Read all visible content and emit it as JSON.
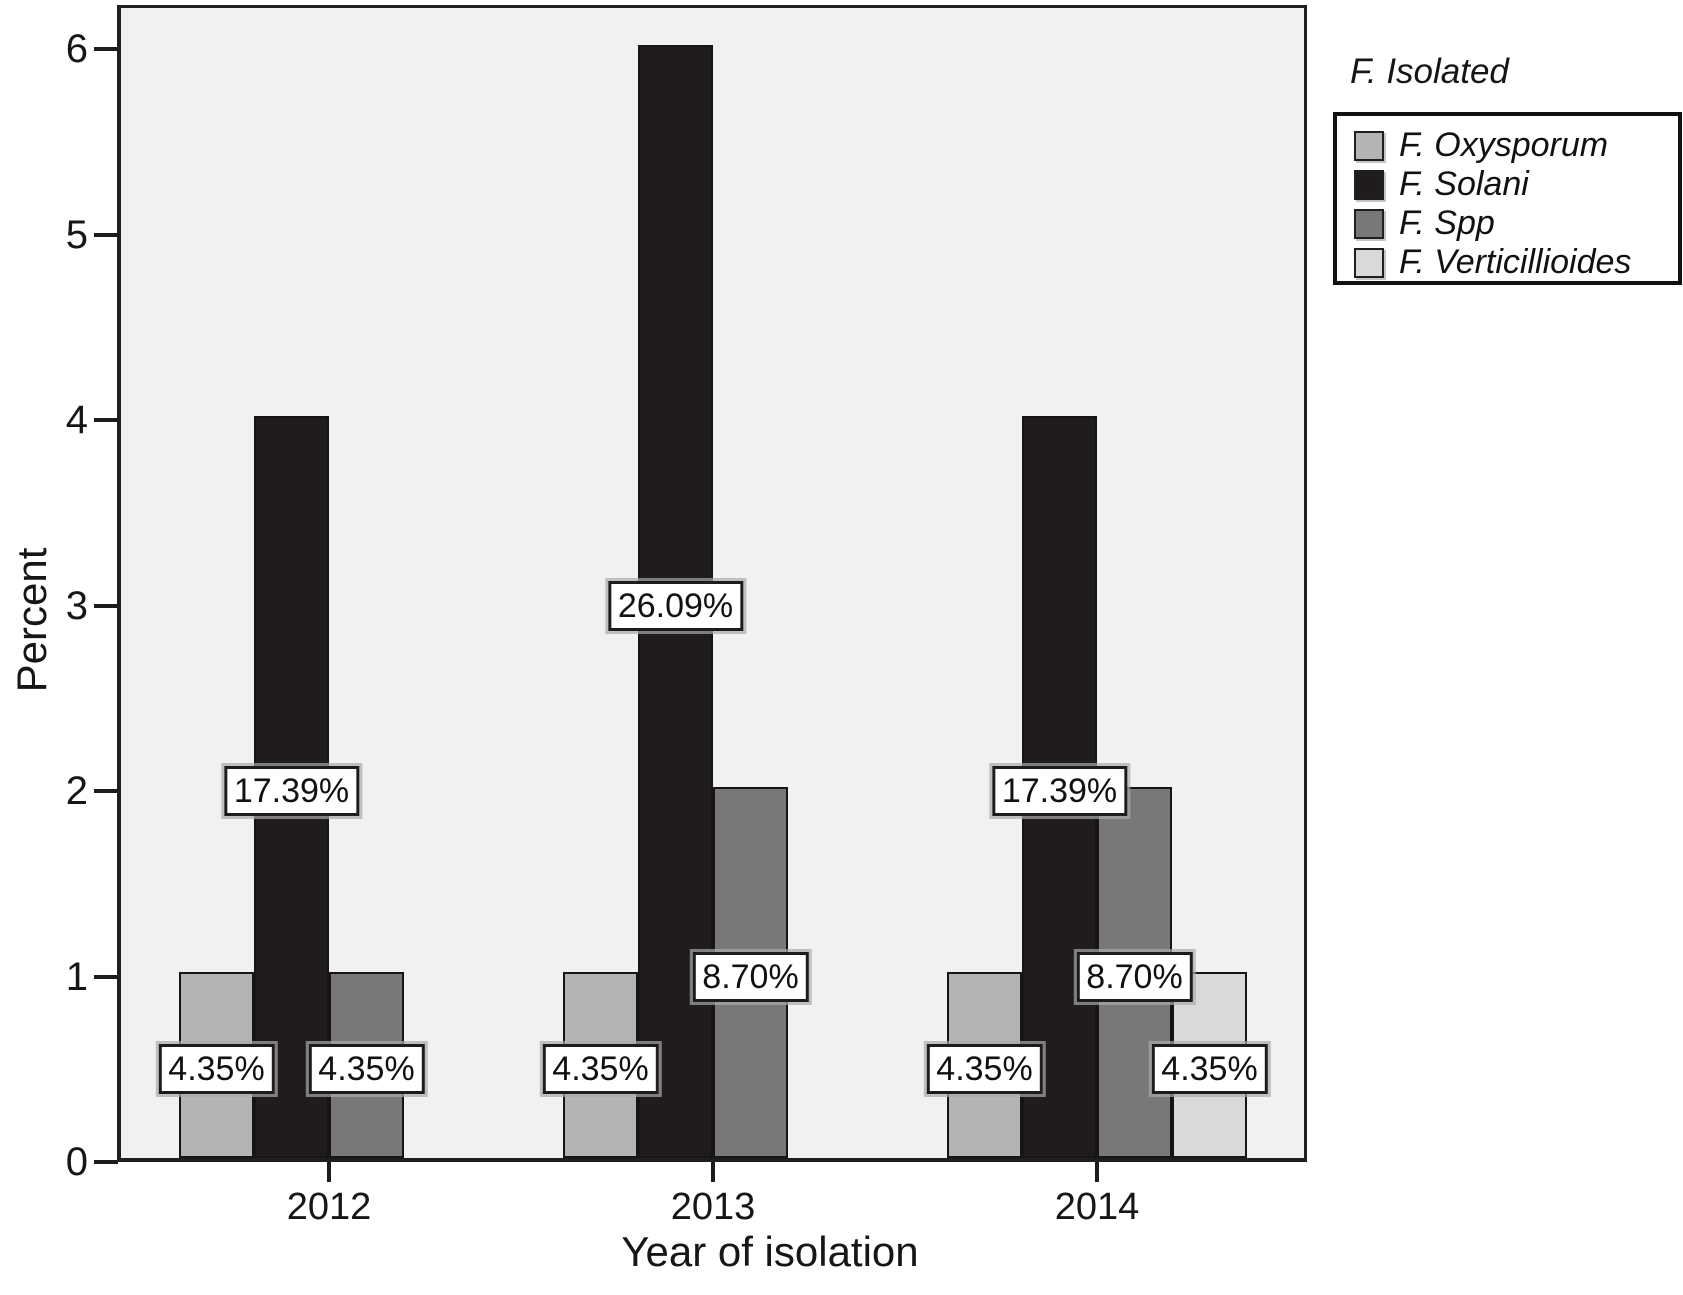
{
  "chart_data": {
    "type": "bar",
    "title": "",
    "xlabel": "Year of isolation",
    "ylabel": "Percent",
    "ylim": [
      0,
      6
    ],
    "yticks": [
      0,
      1,
      2,
      3,
      4,
      5,
      6
    ],
    "categories": [
      "2012",
      "2013",
      "2014"
    ],
    "legend_title": "F. Isolated",
    "legend_position": "right-top",
    "grid": "off",
    "plot_background": "#f1f1f1",
    "series": [
      {
        "name": "F. Oxysporum",
        "color": "#b4b4b4",
        "values": [
          1,
          1,
          1
        ],
        "labels": [
          "4.35%",
          "4.35%",
          "4.35%"
        ]
      },
      {
        "name": "F. Solani",
        "color": "#201c1c",
        "values": [
          4,
          6,
          4
        ],
        "labels": [
          "17.39%",
          "26.09%",
          "17.39%"
        ]
      },
      {
        "name": "F. Spp",
        "color": "#787878",
        "values": [
          1,
          2,
          2
        ],
        "labels": [
          "4.35%",
          "8.70%",
          "8.70%"
        ]
      },
      {
        "name": "F. Verticillioides",
        "color": "#d9d9d9",
        "values": [
          null,
          null,
          1
        ],
        "labels": [
          null,
          null,
          "4.35%"
        ]
      }
    ]
  }
}
